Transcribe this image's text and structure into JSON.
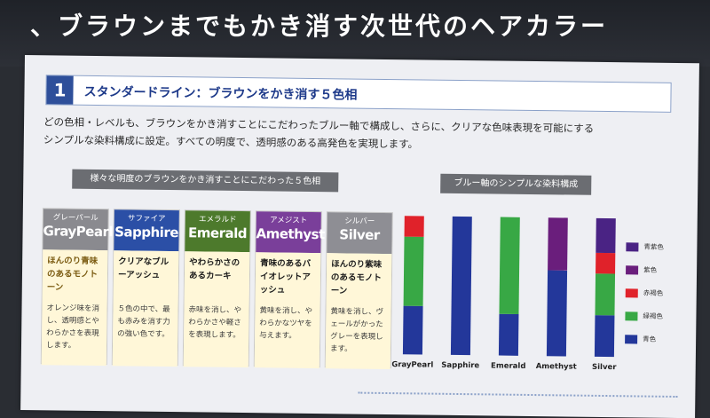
{
  "headline": "、ブラウンまでもかき消す次世代のヘアカラー",
  "section": {
    "number": "1",
    "title": "スタンダードライン：ブラウンをかき消す５色相"
  },
  "intro": {
    "line1": "どの色相・レベルも、ブラウンをかき消すことにこだわったブルー軸で構成し、さらに、クリアな色味表現を可能にする",
    "line2": "シンプルな染料構成に設定。すべての明度で、透明感のある高発色を実現します。"
  },
  "tags": {
    "left": "様々な明度のブラウンをかき消すことにこだわった５色相",
    "right": "ブルー軸のシンプルな染料構成"
  },
  "cards": [
    {
      "kana": "グレーパール",
      "name": "GrayPearl",
      "color": "#8a8a8f",
      "sub": "ほんのり青味のあるモノトーン",
      "desc": "オレンジ味を消し、透明感とやわらかさを表現します。"
    },
    {
      "kana": "サファイア",
      "name": "Sapphire",
      "color": "#2b4fa6",
      "sub": "クリアなブルーアッシュ",
      "desc": "５色の中で、最も赤みを消す力の強い色です。"
    },
    {
      "kana": "エメラルド",
      "name": "Emerald",
      "color": "#4d7a2c",
      "sub": "やわらかさのあるカーキ",
      "desc": "赤味を消し、やわらかさや軽さを表現します。"
    },
    {
      "kana": "アメジスト",
      "name": "Amethyst",
      "color": "#7a3f9a",
      "sub": "青味のあるバイオレットアッシュ",
      "desc": "黄味を消し、やわらかなツヤを与えます。"
    },
    {
      "kana": "シルバー",
      "name": "Silver",
      "color": "#8e8e94",
      "sub": "ほんのり紫味のあるモノトーン",
      "desc": "黄味を消し、ヴェールがかったグレーを表現します。"
    }
  ],
  "chart_data": {
    "type": "bar",
    "stacked": true,
    "categories": [
      "GrayPearl",
      "Sapphire",
      "Emerald",
      "Amethyst",
      "Silver"
    ],
    "series": [
      {
        "name": "青色",
        "color": "#23379a",
        "values": [
          35,
          100,
          30,
          62,
          30
        ]
      },
      {
        "name": "緑褐色",
        "color": "#38a845",
        "values": [
          50,
          0,
          70,
          0,
          30
        ]
      },
      {
        "name": "赤褐色",
        "color": "#e0222a",
        "values": [
          15,
          0,
          0,
          0,
          15
        ]
      },
      {
        "name": "紫色",
        "color": "#6a1e7c",
        "values": [
          0,
          0,
          0,
          38,
          0
        ]
      },
      {
        "name": "青紫色",
        "color": "#4a2384",
        "values": [
          0,
          0,
          0,
          0,
          25
        ]
      }
    ],
    "ylim": [
      0,
      100
    ],
    "legend_position": "right",
    "legend_order": [
      "青紫色",
      "紫色",
      "赤褐色",
      "緑褐色",
      "青色"
    ]
  }
}
